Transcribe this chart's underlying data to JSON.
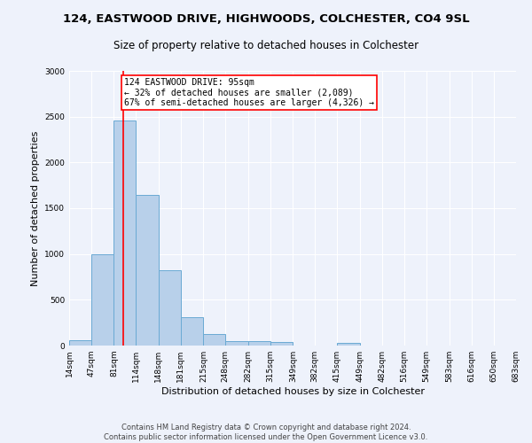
{
  "title1": "124, EASTWOOD DRIVE, HIGHWOODS, COLCHESTER, CO4 9SL",
  "title2": "Size of property relative to detached houses in Colchester",
  "xlabel": "Distribution of detached houses by size in Colchester",
  "ylabel": "Number of detached properties",
  "bar_values": [
    60,
    1000,
    2460,
    1650,
    825,
    305,
    130,
    50,
    45,
    35,
    0,
    0,
    30,
    0,
    0,
    0,
    0,
    0,
    0,
    0
  ],
  "bin_edges": [
    14,
    47,
    81,
    114,
    148,
    181,
    215,
    248,
    282,
    315,
    349,
    382,
    415,
    449,
    482,
    516,
    549,
    583,
    616,
    650,
    683
  ],
  "bar_color": "#b8d0ea",
  "bar_edge_color": "#6aaad4",
  "vline_x": 95,
  "vline_color": "red",
  "annotation_text": "124 EASTWOOD DRIVE: 95sqm\n← 32% of detached houses are smaller (2,089)\n67% of semi-detached houses are larger (4,326) →",
  "annotation_box_color": "white",
  "annotation_box_edge_color": "red",
  "ylim": [
    0,
    3000
  ],
  "yticks": [
    0,
    500,
    1000,
    1500,
    2000,
    2500,
    3000
  ],
  "background_color": "#eef2fb",
  "grid_color": "#ffffff",
  "footer_text": "Contains HM Land Registry data © Crown copyright and database right 2024.\nContains public sector information licensed under the Open Government Licence v3.0.",
  "title1_fontsize": 9.5,
  "title2_fontsize": 8.5,
  "xlabel_fontsize": 8,
  "ylabel_fontsize": 8,
  "tick_fontsize": 6.5,
  "footer_fontsize": 6,
  "annotation_fontsize": 7
}
